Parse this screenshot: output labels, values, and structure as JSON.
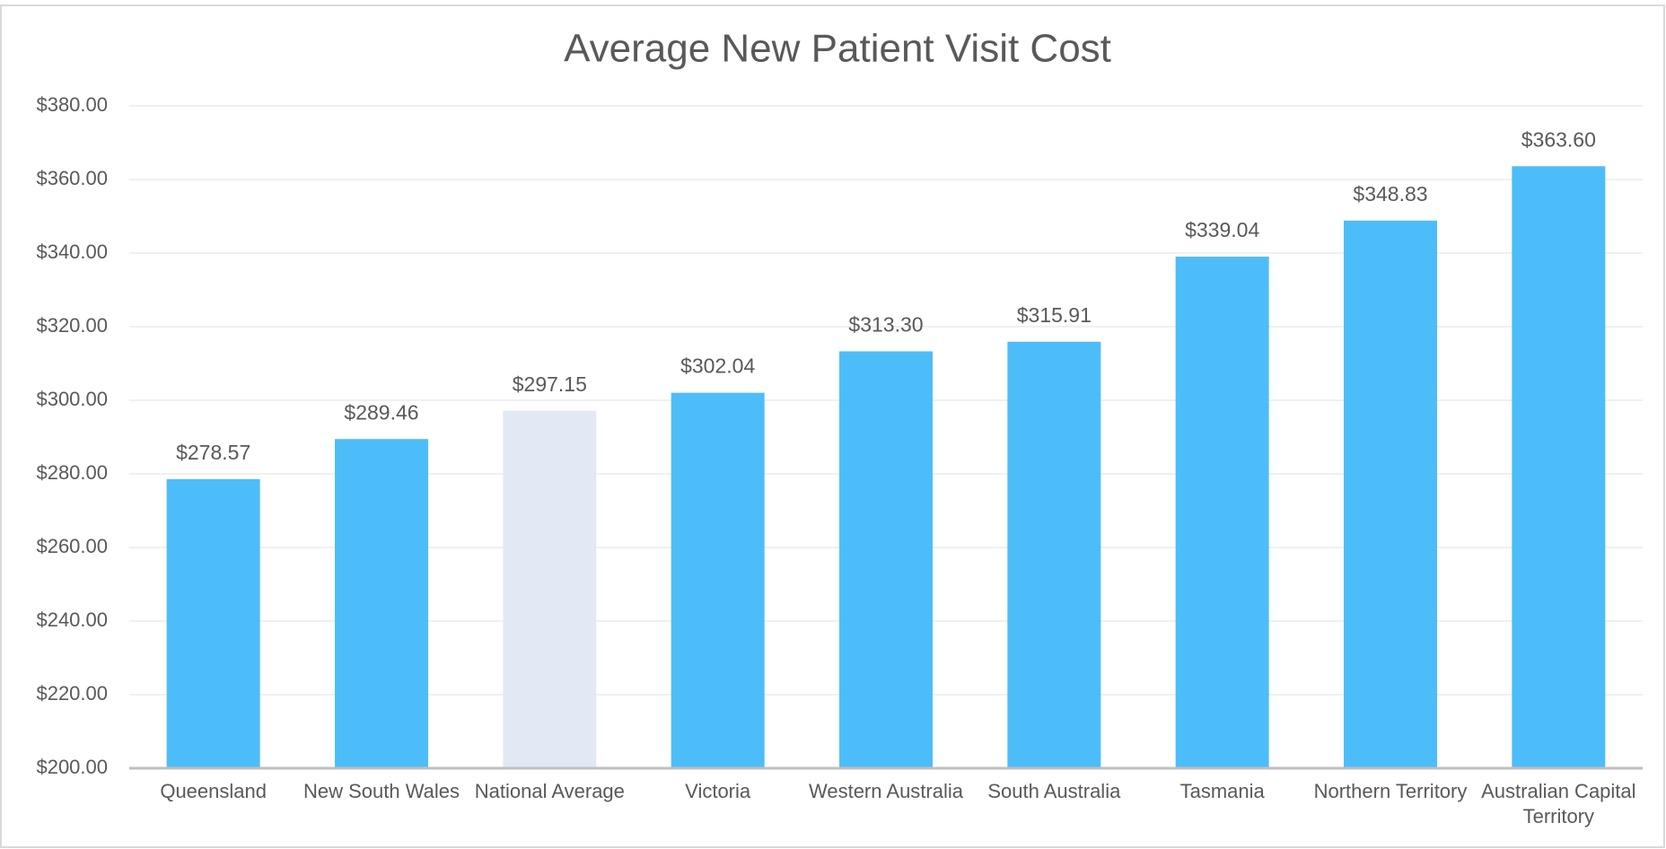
{
  "chart_data": {
    "type": "bar",
    "title": "Average New Patient Visit Cost",
    "categories": [
      "Queensland",
      "New South Wales",
      "National Average",
      "Victoria",
      "Western Australia",
      "South Australia",
      "Tasmania",
      "Northern Territory",
      "Australian Capital Territory"
    ],
    "values": [
      278.57,
      289.46,
      297.15,
      302.04,
      313.3,
      315.91,
      339.04,
      348.83,
      363.6
    ],
    "value_labels": [
      "$278.57",
      "$289.46",
      "$297.15",
      "$302.04",
      "$313.30",
      "$315.91",
      "$339.04",
      "$348.83",
      "$363.60"
    ],
    "colors": [
      "#4dbdf9",
      "#4dbdf9",
      "#e1e9f5",
      "#4dbdf9",
      "#4dbdf9",
      "#4dbdf9",
      "#4dbdf9",
      "#4dbdf9",
      "#4dbdf9"
    ],
    "ylim": [
      200,
      380
    ],
    "yticks": [
      {
        "value": 200,
        "label": "$200.00"
      },
      {
        "value": 220,
        "label": "$220.00"
      },
      {
        "value": 240,
        "label": "$240.00"
      },
      {
        "value": 260,
        "label": "$260.00"
      },
      {
        "value": 280,
        "label": "$280.00"
      },
      {
        "value": 300,
        "label": "$300.00"
      },
      {
        "value": 320,
        "label": "$320.00"
      },
      {
        "value": 340,
        "label": "$340.00"
      },
      {
        "value": 360,
        "label": "$360.00"
      },
      {
        "value": 380,
        "label": "$380.00"
      }
    ],
    "grid": true
  }
}
